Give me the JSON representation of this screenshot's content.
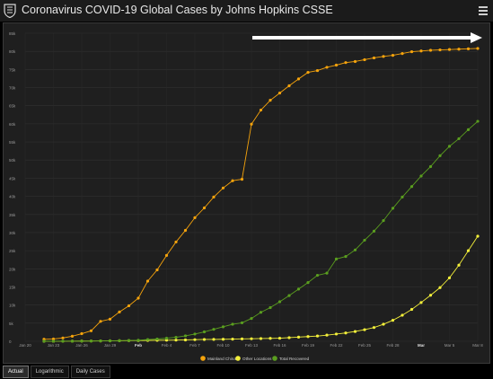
{
  "header": {
    "title": "Coronavirus COVID-19 Global Cases by Johns Hopkins CSSE",
    "logo_icon": "jhu-shield-icon",
    "menu_icon": "hamburger-menu-icon"
  },
  "tabs": [
    {
      "label": "Actual",
      "active": true
    },
    {
      "label": "Logarithmic",
      "active": false
    },
    {
      "label": "Daily Cases",
      "active": false
    }
  ],
  "colors": {
    "background": "#000000",
    "panel": "#1f1f1f",
    "mainland_china": "#f5a30c",
    "other_locations": "#f4f03a",
    "total_recovered": "#5a9e1f",
    "arrow": "#ffffff"
  },
  "chart_data": {
    "type": "line",
    "title": "",
    "xlabel": "",
    "ylabel": "",
    "ylim": [
      0,
      85000
    ],
    "y_ticks": [
      "0",
      "5k",
      "10k",
      "15k",
      "20k",
      "25k",
      "30k",
      "35k",
      "40k",
      "45k",
      "50k",
      "55k",
      "60k",
      "65k",
      "70k",
      "75k",
      "80k",
      "85k"
    ],
    "x_ticks": [
      "Jan 20",
      "Jan 23",
      "Jan 26",
      "Jan 29",
      "Feb",
      "Feb 4",
      "Feb 7",
      "Feb 10",
      "Feb 13",
      "Feb 16",
      "Feb 19",
      "Feb 22",
      "Feb 25",
      "Feb 28",
      "Mar",
      "Mar 5",
      "Mar 8"
    ],
    "x": [
      "Jan 22",
      "Jan 23",
      "Jan 24",
      "Jan 25",
      "Jan 26",
      "Jan 27",
      "Jan 28",
      "Jan 29",
      "Jan 30",
      "Jan 31",
      "Feb 1",
      "Feb 2",
      "Feb 3",
      "Feb 4",
      "Feb 5",
      "Feb 6",
      "Feb 7",
      "Feb 8",
      "Feb 9",
      "Feb 10",
      "Feb 11",
      "Feb 12",
      "Feb 13",
      "Feb 14",
      "Feb 15",
      "Feb 16",
      "Feb 17",
      "Feb 18",
      "Feb 19",
      "Feb 20",
      "Feb 21",
      "Feb 22",
      "Feb 23",
      "Feb 24",
      "Feb 25",
      "Feb 26",
      "Feb 27",
      "Feb 28",
      "Feb 29",
      "Mar 1",
      "Mar 2",
      "Mar 3",
      "Mar 4",
      "Mar 5",
      "Mar 6",
      "Mar 7",
      "Mar 8"
    ],
    "series": [
      {
        "name": "Mainland China",
        "values": [
          550,
          640,
          920,
          1400,
          2100,
          2900,
          5500,
          6100,
          8100,
          9800,
          11900,
          16600,
          19700,
          23700,
          27400,
          30600,
          34100,
          36800,
          39800,
          42300,
          44300,
          44700,
          59900,
          63800,
          66500,
          68500,
          70500,
          72400,
          74200,
          74700,
          75600,
          76200,
          76900,
          77200,
          77700,
          78200,
          78600,
          78900,
          79400,
          79900,
          80100,
          80300,
          80400,
          80500,
          80600,
          80700,
          80800
        ]
      },
      {
        "name": "Other Locations",
        "values": [
          5,
          10,
          20,
          40,
          60,
          80,
          100,
          120,
          150,
          180,
          200,
          240,
          270,
          300,
          330,
          380,
          450,
          500,
          520,
          560,
          600,
          660,
          700,
          750,
          800,
          850,
          1000,
          1150,
          1300,
          1450,
          1700,
          2000,
          2300,
          2700,
          3200,
          3800,
          4700,
          5800,
          7200,
          8800,
          10700,
          12700,
          14800,
          17500,
          21000,
          25000,
          29000
        ]
      },
      {
        "name": "Total Recovered",
        "values": [
          30,
          30,
          40,
          40,
          50,
          60,
          110,
          130,
          170,
          220,
          280,
          470,
          620,
          850,
          1100,
          1500,
          2000,
          2600,
          3300,
          4000,
          4700,
          5100,
          6300,
          8000,
          9300,
          10900,
          12600,
          14400,
          16200,
          18200,
          18800,
          22700,
          23400,
          25200,
          27900,
          30400,
          33300,
          36700,
          39800,
          42700,
          45600,
          48200,
          51200,
          53800,
          55900,
          58400,
          60700
        ]
      }
    ],
    "legend_position": "bottom",
    "grid": true
  }
}
